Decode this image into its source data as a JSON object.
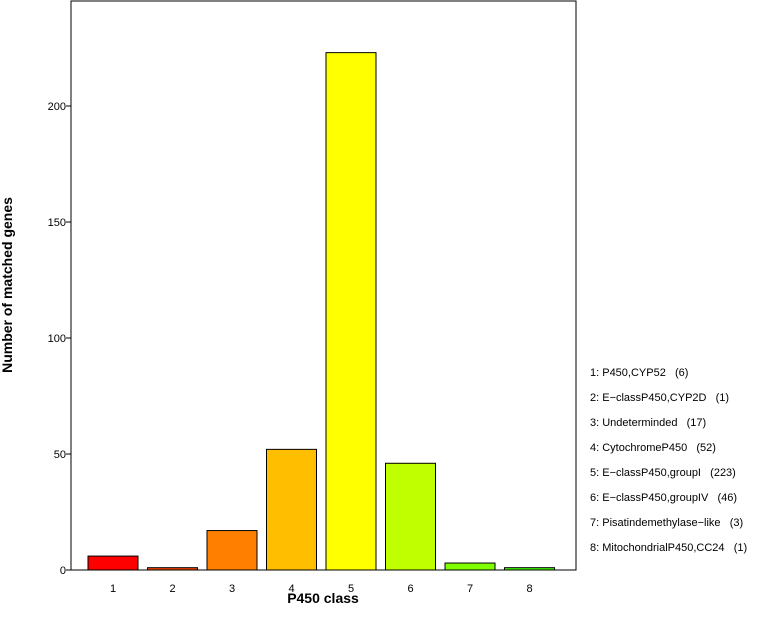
{
  "chart_data": {
    "type": "bar",
    "categories": [
      "1",
      "2",
      "3",
      "4",
      "5",
      "6",
      "7",
      "8"
    ],
    "values": [
      6,
      1,
      17,
      52,
      223,
      46,
      3,
      1
    ],
    "colors": [
      "#ff0000",
      "#ff4400",
      "#ff8000",
      "#ffbf00",
      "#ffff00",
      "#bfff00",
      "#80ff00",
      "#40ff00"
    ],
    "title": "",
    "xlabel": "P450 class",
    "ylabel": "Number of matched genes",
    "ylim": [
      0,
      238
    ],
    "yticks": [
      0,
      50,
      100,
      150,
      200
    ],
    "grid": false,
    "legend_position": "right",
    "legend": [
      "1: P450,CYP52   (6)",
      "2: E−classP450,CYP2D   (1)",
      "3: Undeterminded   (17)",
      "4: CytochromeP450   (52)",
      "5: E−classP450,groupI   (223)",
      "6: E−classP450,groupIV   (46)",
      "7: Pisatindemethylase−like   (3)",
      "8: MitochondrialP450,CC24   (1)"
    ]
  }
}
